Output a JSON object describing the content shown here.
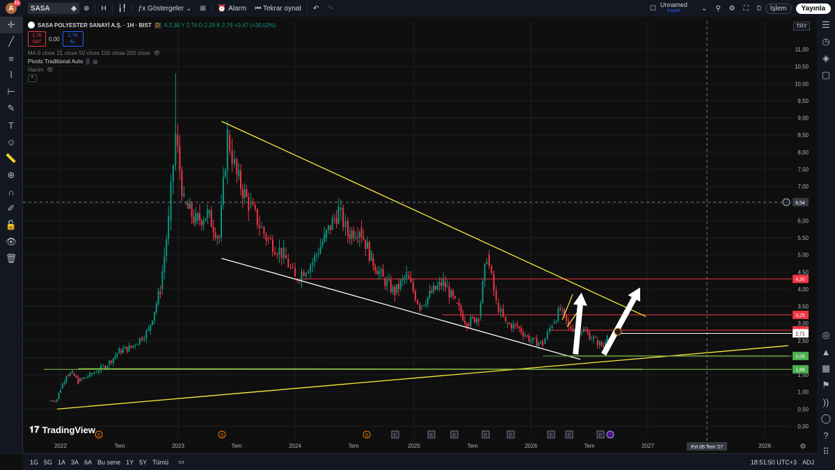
{
  "topbar": {
    "avatar_letter": "A",
    "avatar_badge": "11",
    "symbol": "SASA",
    "interval": "H",
    "indicators_label": "Göstergeler",
    "alarm_label": "Alarm",
    "replay_label": "Tekrar oynat",
    "layout_name": "Unnamed",
    "layout_status": "Kaydet",
    "trade_label": "İşlem",
    "publish_label": "Yayınla"
  },
  "legend": {
    "title": "SASA POLYESTER SANAYİ A.Ş. · 1H · BIST",
    "ohlc": "A 2,30  Y 2,76  D 2,29  K 2,76  +0,47 (+20,52%)",
    "sell_price": "2,76",
    "sell_label": "SAT",
    "spread": "0,00",
    "buy_price": "2,76",
    "buy_label": "AL",
    "ma_line": "MA 9 close 21 close 50 close 100 close 200 close",
    "pivots_line": "Pivots Traditional Auto",
    "volume_line": "Hacim"
  },
  "currency": "TRY",
  "chart_data": {
    "type": "candlestick",
    "title": "SASA POLYESTER SANAYİ A.Ş. · 1H · BIST",
    "ylim": [
      0,
      11.5
    ],
    "y_ticks": [
      "11,00",
      "10,50",
      "10,00",
      "9,50",
      "9,00",
      "8,50",
      "8,00",
      "7,50",
      "7,00",
      "6,50",
      "6,00",
      "5,50",
      "5,00",
      "4,50",
      "4,00",
      "3,50",
      "3,00",
      "2,50",
      "2,00",
      "1,50",
      "1,00",
      "0,50",
      "0,00"
    ],
    "x_ticks": [
      "2022",
      "Tem",
      "2023",
      "Tem",
      "2024",
      "Tem",
      "2025",
      "Tem",
      "2026",
      "Tem",
      "2027",
      "2028"
    ],
    "crosshair_label": "Pzt 05 Tem '27",
    "crosshair_price": "6,54",
    "price_tags": [
      {
        "label": "4,30",
        "color": "#f23645"
      },
      {
        "label": "3,25",
        "color": "#f23645"
      },
      {
        "label": "2,80",
        "color": "#f23645"
      },
      {
        "label": "2,71",
        "color": "#ffffff"
      },
      {
        "label": "2,05",
        "color": "#4caf50"
      },
      {
        "label": "1,66",
        "color": "#4caf50"
      }
    ],
    "horizontal_levels": [
      4.3,
      3.25,
      2.8,
      2.71,
      2.05,
      1.66
    ],
    "close_path_note": "",
    "price_path": [
      [
        2021.9,
        0.73
      ],
      [
        2021.97,
        0.8
      ],
      [
        2022.0,
        1.1
      ],
      [
        2022.05,
        1.5
      ],
      [
        2022.1,
        1.55
      ],
      [
        2022.15,
        1.3
      ],
      [
        2022.25,
        1.5
      ],
      [
        2022.4,
        1.8
      ],
      [
        2022.5,
        2.2
      ],
      [
        2022.6,
        2.3
      ],
      [
        2022.75,
        2.8
      ],
      [
        2022.85,
        4.0
      ],
      [
        2022.92,
        6.0
      ],
      [
        2022.98,
        8.5
      ],
      [
        2023.05,
        6.5
      ],
      [
        2023.15,
        6.0
      ],
      [
        2023.25,
        6.2
      ],
      [
        2023.35,
        5.5
      ],
      [
        2023.42,
        8.5
      ],
      [
        2023.5,
        7.3
      ],
      [
        2023.6,
        6.5
      ],
      [
        2023.75,
        5.5
      ],
      [
        2023.9,
        5.0
      ],
      [
        2024.0,
        4.3
      ],
      [
        2024.15,
        4.8
      ],
      [
        2024.25,
        5.5
      ],
      [
        2024.37,
        6.3
      ],
      [
        2024.45,
        5.6
      ],
      [
        2024.55,
        5.8
      ],
      [
        2024.65,
        4.9
      ],
      [
        2024.75,
        4.3
      ],
      [
        2024.85,
        3.9
      ],
      [
        2024.95,
        4.4
      ],
      [
        2025.05,
        3.5
      ],
      [
        2025.15,
        3.9
      ],
      [
        2025.25,
        4.2
      ],
      [
        2025.35,
        3.6
      ],
      [
        2025.45,
        3.0
      ],
      [
        2025.55,
        3.2
      ],
      [
        2025.62,
        5.0
      ],
      [
        2025.7,
        3.6
      ],
      [
        2025.78,
        3.0
      ],
      [
        2025.88,
        2.9
      ],
      [
        2026.0,
        2.5
      ],
      [
        2026.1,
        2.4
      ],
      [
        2026.18,
        3.0
      ],
      [
        2026.25,
        3.4
      ],
      [
        2026.32,
        2.9
      ],
      [
        2026.45,
        2.8
      ],
      [
        2026.55,
        2.5
      ],
      [
        2026.62,
        2.3
      ],
      [
        2026.65,
        2.76
      ]
    ],
    "series": [
      {
        "name": "",
        "kind": "trendline",
        "color": "#ffeb3b",
        "points": [
          [
            2023.37,
            8.9
          ],
          [
            2026.98,
            3.2
          ]
        ]
      },
      {
        "name": "",
        "kind": "trendline",
        "color": "#ffffff",
        "points": [
          [
            2023.37,
            4.9
          ],
          [
            2026.42,
            1.95
          ]
        ]
      },
      {
        "name": "",
        "kind": "trendline",
        "color": "#ffeb3b",
        "points": [
          [
            2021.97,
            0.5
          ],
          [
            2028.2,
            2.35
          ]
        ]
      },
      {
        "name": "",
        "kind": "trendline",
        "color": "#8bc34a",
        "points": [
          [
            2022.15,
            1.68
          ],
          [
            2026.95,
            1.66
          ]
        ]
      },
      {
        "name": "",
        "kind": "trendline",
        "color": "#8bc34a",
        "points": [
          [
            2026.3,
            2.05
          ],
          [
            2028.2,
            2.05
          ]
        ]
      }
    ],
    "arrows": [
      {
        "from": [
          2026.38,
          2.1
        ],
        "to": [
          2026.43,
          3.9
        ]
      },
      {
        "from": [
          2026.62,
          2.1
        ],
        "to": [
          2026.93,
          4.05
        ]
      }
    ],
    "markers": [
      "S",
      "S",
      "S",
      "E",
      "E",
      "E",
      "E",
      "E",
      "E",
      "E",
      "E"
    ]
  },
  "bottombar": {
    "ranges": [
      "1G",
      "5G",
      "1A",
      "3A",
      "6A",
      "Bu sene",
      "1Y",
      "5Y",
      "Tümü"
    ],
    "clock": "18:51:50 UTC+3",
    "adj": "ADJ"
  },
  "brand": "TradingView",
  "icons": [
    "chart-icon",
    "crosshair-icon",
    "trendline-icon",
    "fib-icon",
    "pattern-icon",
    "measure-icon",
    "brush-icon",
    "text-icon",
    "emoji-icon",
    "ruler-icon",
    "zoom-icon",
    "magnet-icon",
    "lock-icon",
    "eye-icon",
    "trash-icon"
  ]
}
